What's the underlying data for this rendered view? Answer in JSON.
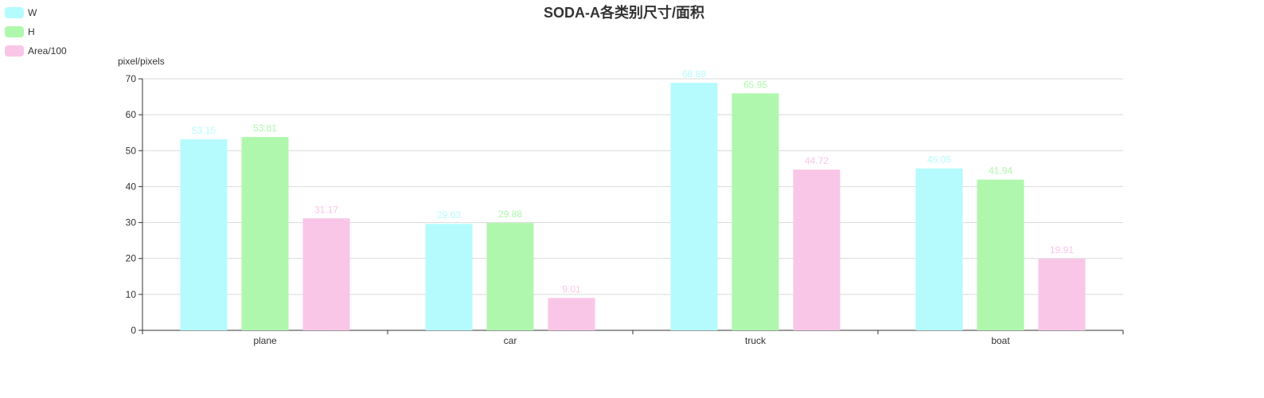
{
  "chart_data": {
    "type": "bar",
    "title": "SODA-A各类别尺寸/面积",
    "ylabel": "pixel/pixels",
    "categories": [
      "plane",
      "car",
      "truck",
      "boat"
    ],
    "series": [
      {
        "name": "W",
        "values": [
          53.15,
          29.63,
          68.88,
          45.05
        ],
        "color": "#b5fbfd"
      },
      {
        "name": "H",
        "values": [
          53.81,
          29.88,
          65.95,
          41.94
        ],
        "color": "#aff7ad"
      },
      {
        "name": "Area/100",
        "values": [
          31.17,
          9.01,
          44.72,
          19.91
        ],
        "color": "#f9c6e8"
      }
    ],
    "ylim": [
      0,
      70
    ],
    "yticks": [
      0,
      10,
      20,
      30,
      40,
      50,
      60,
      70
    ],
    "grid": true,
    "legend_position": "top-left"
  }
}
